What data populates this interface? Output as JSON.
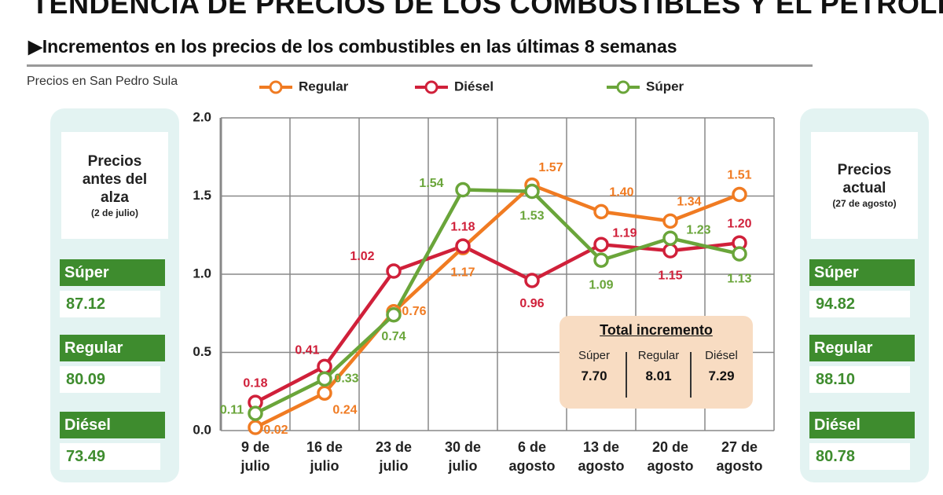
{
  "header": {
    "title": "TENDENCIA DE PRECIOS DE LOS COMBUSTIBLES Y EL PETRÓLEO",
    "subtitle": "Incrementos en los precios de los combustibles en las últimas 8 semanas",
    "note": "Precios en San Pedro Sula"
  },
  "chart_data": {
    "type": "line",
    "categories": [
      "9 de julio",
      "16 de julio",
      "23 de julio",
      "30 de julio",
      "6 de agosto",
      "13 de agosto",
      "20 de agosto",
      "27 de agosto"
    ],
    "series": [
      {
        "name": "Regular",
        "color": "#f07b22",
        "values": [
          0.02,
          0.24,
          0.76,
          1.17,
          1.57,
          1.4,
          1.34,
          1.51
        ],
        "value_labels": [
          "0.02",
          "0.24",
          "0.76",
          "1.17",
          "1.57",
          "1.40",
          "1.34",
          "1.51"
        ]
      },
      {
        "name": "Diésel",
        "color": "#d0203a",
        "values": [
          0.18,
          0.41,
          1.02,
          1.18,
          0.96,
          1.19,
          1.15,
          1.2
        ],
        "value_labels": [
          "0.18",
          "0.41",
          "1.02",
          "1.18",
          "0.96",
          "1.19",
          "1.15",
          "1.20"
        ]
      },
      {
        "name": "Súper",
        "color": "#6aa53a",
        "values": [
          0.11,
          0.33,
          0.74,
          1.54,
          1.53,
          1.09,
          1.23,
          1.13
        ],
        "value_labels": [
          "0.11",
          "0.33",
          "0.74",
          "1.54",
          "1.53",
          "1.09",
          "1.23",
          "1.13"
        ]
      }
    ],
    "ylim": [
      0,
      2
    ],
    "yticks": [
      {
        "value": 0,
        "label": "0.0"
      },
      0.5,
      {
        "value": 1,
        "label": "1.0"
      },
      1.5,
      {
        "value": 2,
        "label": "2.0"
      }
    ],
    "grid": true
  },
  "before": {
    "title": "Precios antes del alza",
    "date": "(2 de julio)",
    "prices": [
      {
        "name": "Súper",
        "value": "87.12"
      },
      {
        "name": "Regular",
        "value": "80.09"
      },
      {
        "name": "Diésel",
        "value": "73.49"
      }
    ]
  },
  "after": {
    "title": "Precios actual",
    "date": "(27 de agosto)",
    "prices": [
      {
        "name": "Súper",
        "value": "94.82"
      },
      {
        "name": "Regular",
        "value": "88.10"
      },
      {
        "name": "Diésel",
        "value": "80.78"
      }
    ]
  },
  "total": {
    "title": "Total incremento",
    "items": [
      {
        "name": "Súper",
        "value": "7.70"
      },
      {
        "name": "Regular",
        "value": "8.01"
      },
      {
        "name": "Diésel",
        "value": "7.29"
      }
    ]
  }
}
